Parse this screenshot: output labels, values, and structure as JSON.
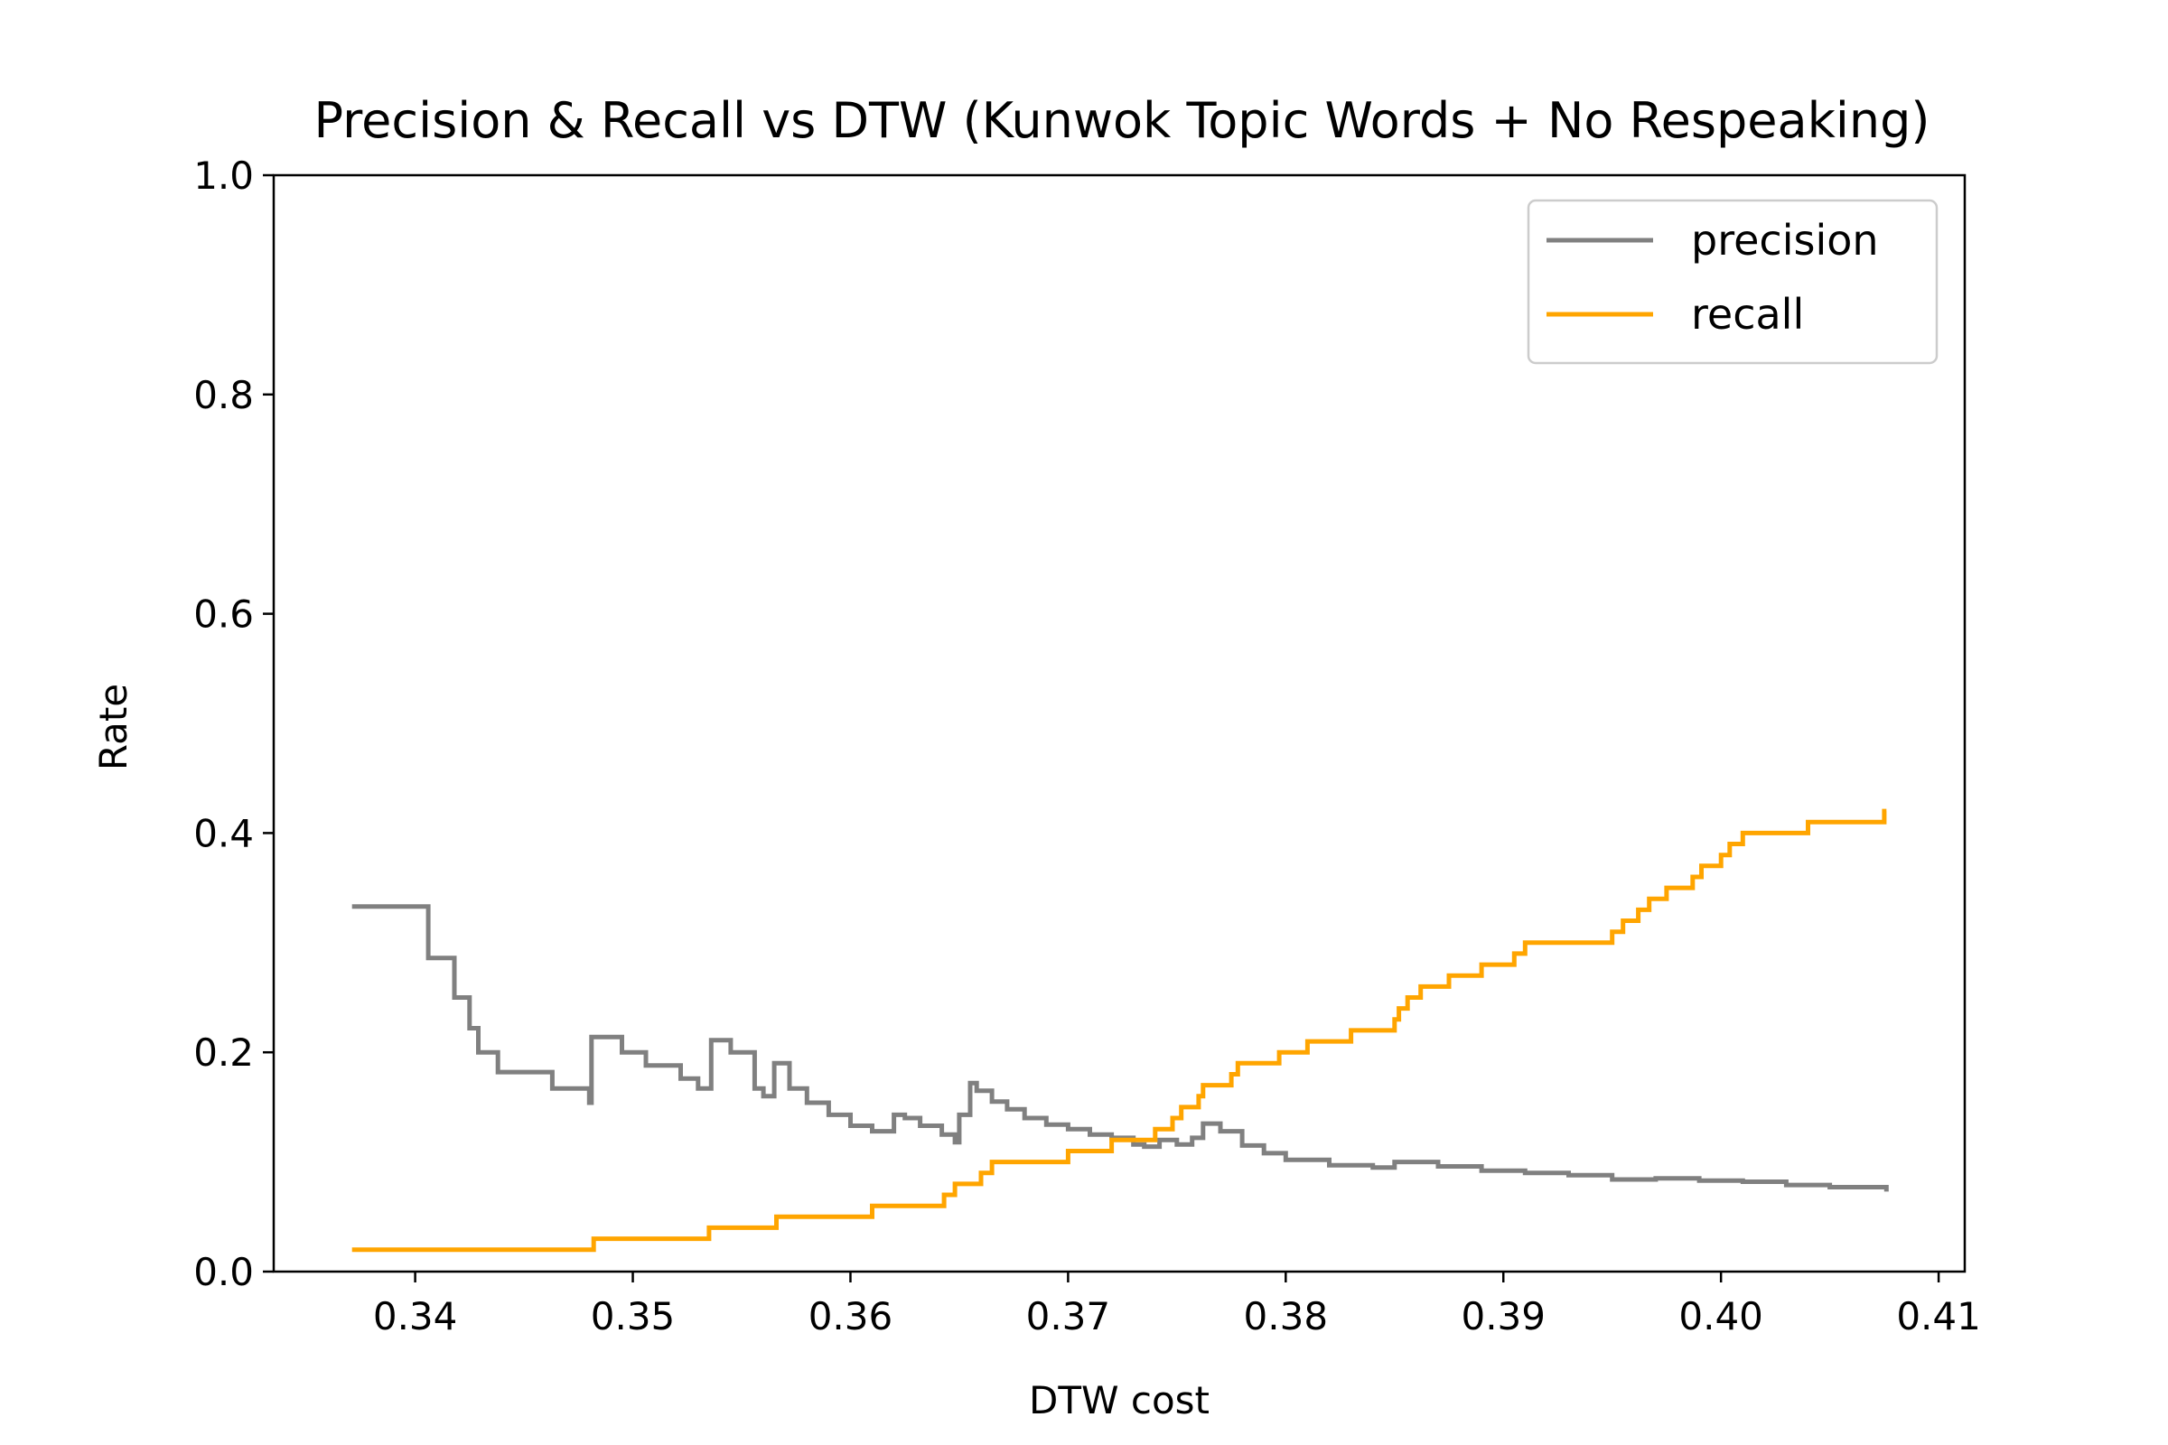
{
  "chart_data": {
    "type": "line",
    "title": "Precision & Recall vs DTW  (Kunwok Topic Words + No Respeaking)",
    "xlabel": "DTW cost",
    "ylabel": "Rate",
    "xlim": [
      0.3335,
      0.4112
    ],
    "ylim": [
      0.0,
      1.0
    ],
    "xticks": [
      0.34,
      0.35,
      0.36,
      0.37,
      0.38,
      0.39,
      0.4,
      0.41
    ],
    "xtick_labels": [
      "0.34",
      "0.35",
      "0.36",
      "0.37",
      "0.38",
      "0.39",
      "0.40",
      "0.41"
    ],
    "yticks": [
      0.0,
      0.2,
      0.4,
      0.6,
      0.8,
      1.0
    ],
    "ytick_labels": [
      "0.0",
      "0.2",
      "0.4",
      "0.6",
      "0.8",
      "1.0"
    ],
    "legend_position": "top-right",
    "grid": false,
    "series": [
      {
        "name": "precision",
        "color": "#808080",
        "step": true,
        "x": [
          0.3371,
          0.3406,
          0.3418,
          0.3425,
          0.3429,
          0.3432,
          0.3438,
          0.3463,
          0.347,
          0.348,
          0.3481,
          0.3482,
          0.3495,
          0.3506,
          0.3522,
          0.353,
          0.3536,
          0.3545,
          0.3556,
          0.356,
          0.3565,
          0.3572,
          0.358,
          0.359,
          0.36,
          0.361,
          0.362,
          0.3625,
          0.3632,
          0.3642,
          0.3648,
          0.365,
          0.3655,
          0.3658,
          0.3665,
          0.3672,
          0.368,
          0.369,
          0.37,
          0.371,
          0.372,
          0.373,
          0.3735,
          0.3742,
          0.375,
          0.3757,
          0.3762,
          0.377,
          0.378,
          0.379,
          0.38,
          0.382,
          0.384,
          0.385,
          0.387,
          0.389,
          0.391,
          0.393,
          0.395,
          0.397,
          0.399,
          0.401,
          0.403,
          0.405,
          0.4076
        ],
        "values": [
          0.333,
          0.286,
          0.25,
          0.222,
          0.2,
          0.2,
          0.182,
          0.167,
          0.167,
          0.154,
          0.214,
          0.214,
          0.2,
          0.188,
          0.176,
          0.167,
          0.211,
          0.2,
          0.167,
          0.16,
          0.19,
          0.167,
          0.154,
          0.143,
          0.133,
          0.128,
          0.143,
          0.14,
          0.133,
          0.125,
          0.118,
          0.143,
          0.172,
          0.165,
          0.155,
          0.148,
          0.14,
          0.134,
          0.13,
          0.125,
          0.122,
          0.116,
          0.114,
          0.12,
          0.116,
          0.122,
          0.135,
          0.128,
          0.115,
          0.108,
          0.102,
          0.097,
          0.095,
          0.1,
          0.096,
          0.092,
          0.09,
          0.088,
          0.084,
          0.085,
          0.083,
          0.082,
          0.079,
          0.077,
          0.073
        ]
      },
      {
        "name": "recall",
        "color": "#ffa500",
        "step": true,
        "x": [
          0.3371,
          0.3482,
          0.3535,
          0.3566,
          0.361,
          0.3637,
          0.3643,
          0.3648,
          0.366,
          0.3665,
          0.3678,
          0.37,
          0.372,
          0.374,
          0.3748,
          0.3752,
          0.376,
          0.3762,
          0.3775,
          0.3778,
          0.378,
          0.3782,
          0.3788,
          0.3792,
          0.3797,
          0.38,
          0.381,
          0.383,
          0.385,
          0.3852,
          0.3856,
          0.3862,
          0.3875,
          0.388,
          0.389,
          0.3905,
          0.391,
          0.395,
          0.3955,
          0.3962,
          0.3967,
          0.3975,
          0.398,
          0.3987,
          0.3991,
          0.4,
          0.4004,
          0.401,
          0.4025,
          0.403,
          0.404,
          0.405,
          0.4075,
          0.4076
        ],
        "values": [
          0.02,
          0.03,
          0.04,
          0.05,
          0.06,
          0.06,
          0.07,
          0.08,
          0.09,
          0.1,
          0.1,
          0.11,
          0.12,
          0.13,
          0.14,
          0.15,
          0.16,
          0.17,
          0.18,
          0.19,
          0.19,
          0.19,
          0.19,
          0.19,
          0.2,
          0.2,
          0.21,
          0.22,
          0.23,
          0.24,
          0.25,
          0.26,
          0.27,
          0.27,
          0.28,
          0.29,
          0.3,
          0.31,
          0.32,
          0.33,
          0.34,
          0.35,
          0.35,
          0.36,
          0.37,
          0.38,
          0.39,
          0.4,
          0.4,
          0.4,
          0.41,
          0.41,
          0.42,
          0.42
        ]
      }
    ]
  }
}
